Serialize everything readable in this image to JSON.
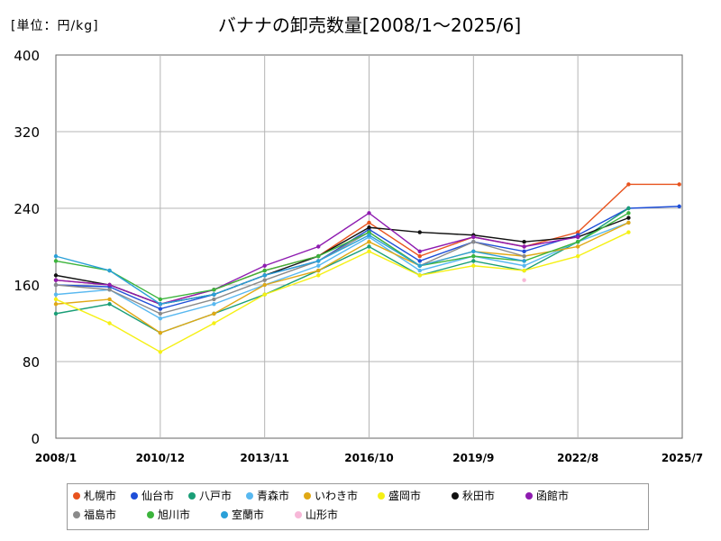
{
  "header": {
    "unit": "[単位：円/kg]",
    "title": "バナナの卸売数量[2008/1～2025/6]"
  },
  "chart_data": {
    "type": "line",
    "title": "バナナの卸売数量[2008/1～2025/6]",
    "unit": "[単位：円/kg]",
    "xlabel": "",
    "ylabel": "",
    "ylim": [
      0,
      400
    ],
    "y_ticks": [
      0,
      80,
      160,
      240,
      320,
      400
    ],
    "x_ticks": [
      "2008/1",
      "2010/12",
      "2013/11",
      "2016/10",
      "2019/9",
      "2022/8",
      "2025/7"
    ],
    "x_range": [
      "2008/1",
      "2025/7"
    ],
    "grid": true,
    "legend_position": "bottom",
    "anchor_months": [
      "2008/1",
      "2009/7",
      "2010/12",
      "2012/6",
      "2013/11",
      "2015/5",
      "2016/10",
      "2018/3",
      "2019/9",
      "2021/2",
      "2022/8",
      "2024/1",
      "2025/6"
    ],
    "series": [
      {
        "name": "札幌市",
        "color": "#e8531e",
        "values": [
          165,
          160,
          140,
          155,
          175,
          190,
          225,
          190,
          210,
          200,
          215,
          265,
          265
        ]
      },
      {
        "name": "仙台市",
        "color": "#1f4fd8",
        "values": [
          160,
          158,
          135,
          150,
          170,
          185,
          218,
          185,
          205,
          195,
          212,
          240,
          242
        ]
      },
      {
        "name": "八戸市",
        "color": "#1a9e77",
        "values": [
          130,
          140,
          110,
          130,
          150,
          175,
          200,
          170,
          185,
          175,
          205,
          240,
          null
        ]
      },
      {
        "name": "青森市",
        "color": "#58b8f0",
        "values": [
          150,
          155,
          125,
          140,
          160,
          180,
          210,
          175,
          190,
          180,
          205,
          225,
          null
        ]
      },
      {
        "name": "いわき市",
        "color": "#e0a814",
        "values": [
          140,
          145,
          110,
          130,
          160,
          175,
          205,
          180,
          195,
          190,
          200,
          225,
          null
        ]
      },
      {
        "name": "盛岡市",
        "color": "#f5f014",
        "values": [
          145,
          120,
          90,
          120,
          150,
          170,
          195,
          170,
          180,
          175,
          190,
          215,
          null
        ]
      },
      {
        "name": "秋田市",
        "color": "#111111",
        "values": [
          170,
          160,
          140,
          150,
          170,
          190,
          220,
          215,
          212,
          205,
          210,
          230,
          null
        ]
      },
      {
        "name": "函館市",
        "color": "#8e1bb0",
        "values": [
          165,
          160,
          140,
          155,
          180,
          200,
          235,
          195,
          210,
          200,
          210,
          null,
          null
        ]
      },
      {
        "name": "福島市",
        "color": "#8a8a8a",
        "values": [
          160,
          155,
          130,
          145,
          165,
          185,
          215,
          180,
          205,
          190,
          null,
          null,
          null
        ]
      },
      {
        "name": "旭川市",
        "color": "#3cb43c",
        "values": [
          185,
          175,
          145,
          155,
          175,
          190,
          215,
          180,
          190,
          185,
          205,
          235,
          null
        ]
      },
      {
        "name": "室蘭市",
        "color": "#2aa0d8",
        "values": [
          190,
          175,
          140,
          150,
          170,
          185,
          212,
          180,
          195,
          185,
          null,
          null,
          null
        ]
      },
      {
        "name": "山形市",
        "color": "#f7b8d8",
        "values": [
          null,
          null,
          null,
          null,
          null,
          null,
          null,
          null,
          null,
          165,
          null,
          null,
          null
        ]
      }
    ]
  }
}
